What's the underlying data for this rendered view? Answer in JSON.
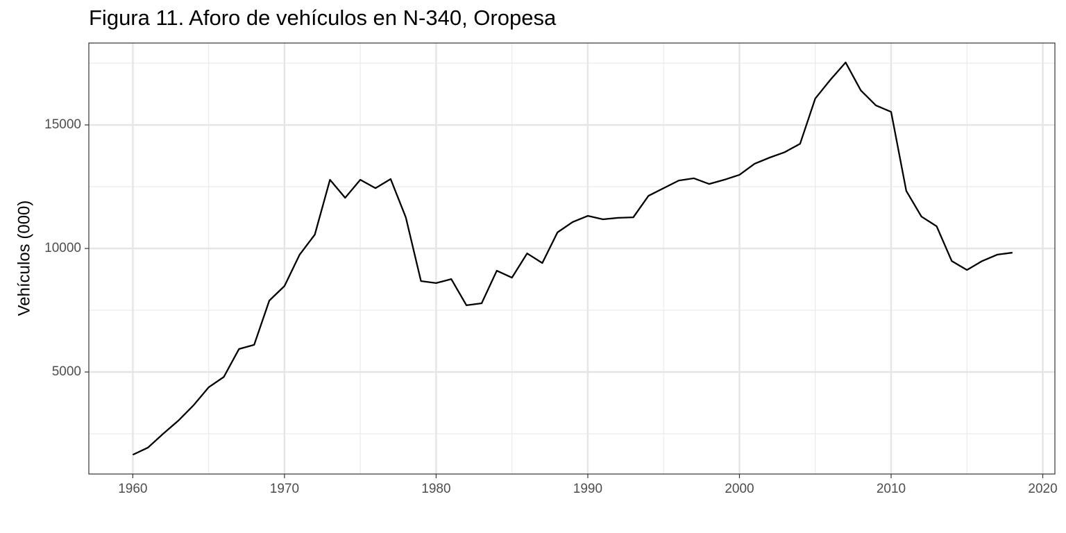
{
  "chart_data": {
    "type": "line",
    "title": "Figura 11. Aforo de vehículos en N-340, Oropesa",
    "y_label": "Vehículos (000)",
    "x": [
      1960,
      1961,
      1962,
      1963,
      1964,
      1965,
      1966,
      1967,
      1968,
      1969,
      1970,
      1971,
      1972,
      1973,
      1974,
      1975,
      1976,
      1977,
      1978,
      1979,
      1980,
      1981,
      1982,
      1983,
      1984,
      1985,
      1986,
      1987,
      1988,
      1989,
      1990,
      1991,
      1992,
      1993,
      1994,
      1995,
      1996,
      1997,
      1998,
      1999,
      2000,
      2001,
      2002,
      2003,
      2004,
      2005,
      2006,
      2007,
      2008,
      2009,
      2010,
      2011,
      2012,
      2013,
      2014,
      2015,
      2016,
      2017,
      2018
    ],
    "series": [
      {
        "color": "#000000",
        "values": [
          1650,
          1940,
          2500,
          3030,
          3650,
          4380,
          4800,
          5930,
          6100,
          7890,
          8480,
          9750,
          10560,
          12780,
          12050,
          12780,
          12440,
          12810,
          11260,
          8680,
          8600,
          8760,
          7700,
          7780,
          9100,
          8820,
          9800,
          9410,
          10650,
          11070,
          11320,
          11180,
          11240,
          11260,
          12130,
          12440,
          12750,
          12840,
          12610,
          12780,
          12980,
          13430,
          13680,
          13900,
          14240,
          16070,
          16830,
          17530,
          16400,
          15790,
          15530,
          12330,
          11290,
          10900,
          9490,
          9130,
          9490,
          9750,
          9830
        ]
      }
    ],
    "xlim": [
      1957.1,
      2020.8
    ],
    "xticks": [
      1960,
      1970,
      1980,
      1990,
      2000,
      2010,
      2020
    ],
    "ylim": [
      871,
      18315
    ],
    "yticks": [
      5000,
      10000,
      15000
    ],
    "x_minor_grid": [
      1965,
      1975,
      1985,
      1995,
      2005,
      2015
    ],
    "y_minor_grid": [
      2500,
      7500,
      12500,
      17500
    ],
    "grid": true
  }
}
